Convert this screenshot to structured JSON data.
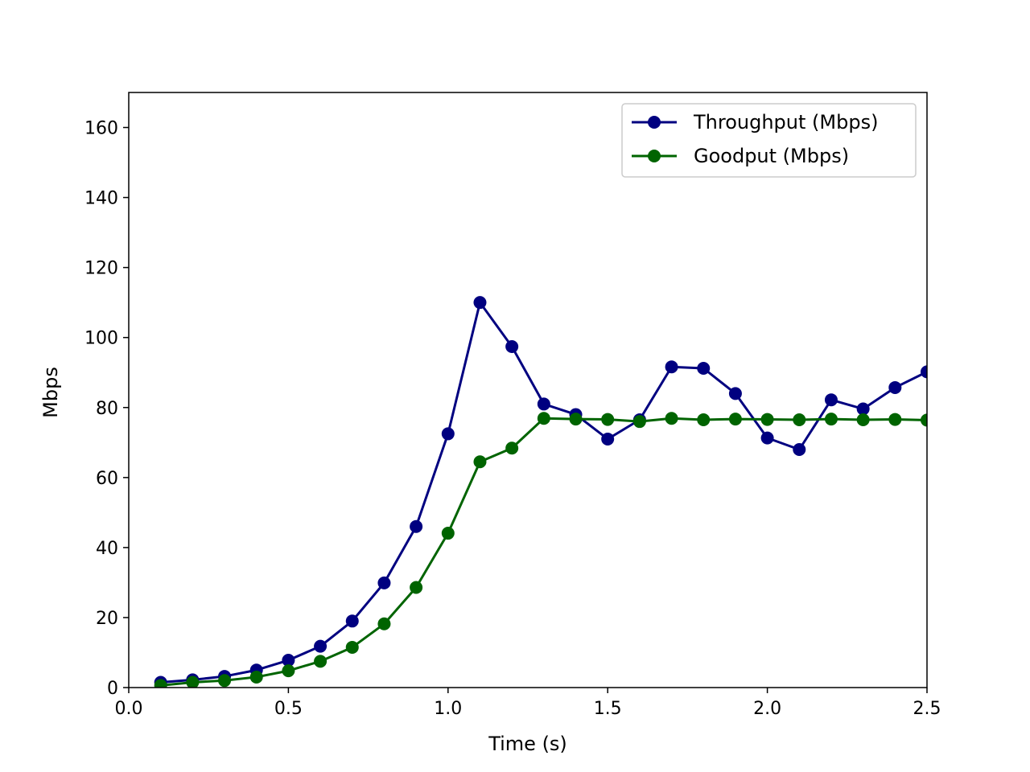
{
  "chart_data": {
    "type": "line",
    "xlabel": "Time (s)",
    "ylabel": "Mbps",
    "xlim": [
      0.0,
      2.5
    ],
    "ylim": [
      0,
      170
    ],
    "xticks": [
      "0.0",
      "0.5",
      "1.0",
      "1.5",
      "2.0",
      "2.5"
    ],
    "yticks": [
      "0",
      "20",
      "40",
      "60",
      "80",
      "100",
      "120",
      "140",
      "160"
    ],
    "grid": false,
    "legend_position": "top-right",
    "x": [
      0.1,
      0.2,
      0.3,
      0.4,
      0.5,
      0.6,
      0.7,
      0.8,
      0.9,
      1.0,
      1.1,
      1.2,
      1.3,
      1.4,
      1.5,
      1.6,
      1.7,
      1.8,
      1.9,
      2.0,
      2.1,
      2.2,
      2.3,
      2.4,
      2.5
    ],
    "series": [
      {
        "name": "Throughput (Mbps)",
        "color": "#000080",
        "marker": "circle",
        "values": [
          1.5,
          2.2,
          3.2,
          5.0,
          7.8,
          11.8,
          19.0,
          29.9,
          46.0,
          72.5,
          110.0,
          97.4,
          81.0,
          78.0,
          71.0,
          76.5,
          91.6,
          91.2,
          84.0,
          71.3,
          68.0,
          82.2,
          79.6,
          85.7,
          90.2
        ]
      },
      {
        "name": "Goodput (Mbps)",
        "color": "#006400",
        "marker": "circle",
        "values": [
          0.6,
          1.5,
          2.0,
          3.0,
          4.8,
          7.5,
          11.5,
          18.2,
          28.6,
          44.1,
          64.5,
          68.4,
          76.9,
          76.7,
          76.6,
          76.0,
          76.9,
          76.5,
          76.7,
          76.6,
          76.5,
          76.7,
          76.5,
          76.6,
          76.4
        ]
      }
    ]
  }
}
